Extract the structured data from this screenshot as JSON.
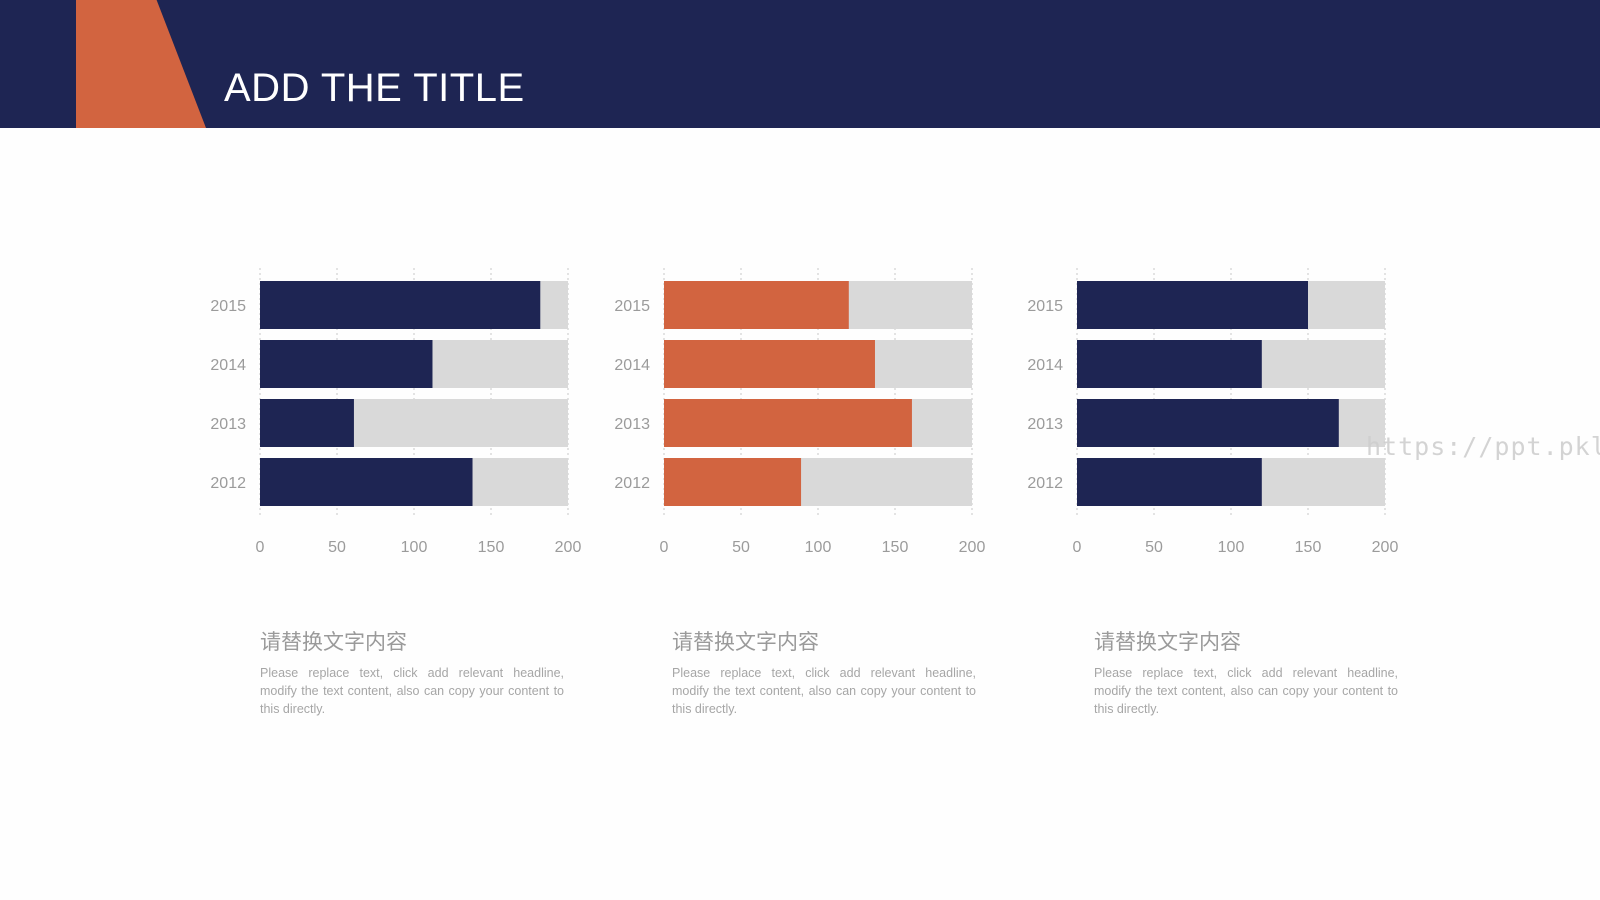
{
  "slide": {
    "title": "ADD THE TITLE",
    "colors": {
      "header_bg": "#1e2553",
      "accent": "#d26440",
      "navy_bar": "#1e2553",
      "orange_bar": "#d26440",
      "track": "#d9d9d9",
      "label": "#9b9b9b"
    }
  },
  "watermark": "https://ppt.pkll.de",
  "chart_data": [
    {
      "type": "bar",
      "orientation": "horizontal",
      "categories": [
        "2015",
        "2014",
        "2013",
        "2012"
      ],
      "values": [
        182,
        112,
        61,
        138
      ],
      "max_track": 200,
      "xlim": [
        0,
        200
      ],
      "xticks": [
        "0",
        "50",
        "100",
        "150",
        "200"
      ],
      "color": "#1e2553",
      "grid": true
    },
    {
      "type": "bar",
      "orientation": "horizontal",
      "categories": [
        "2015",
        "2014",
        "2013",
        "2012"
      ],
      "values": [
        120,
        137,
        161,
        89
      ],
      "max_track": 200,
      "xlim": [
        0,
        200
      ],
      "xticks": [
        "0",
        "50",
        "100",
        "150",
        "200"
      ],
      "color": "#d26440",
      "grid": true
    },
    {
      "type": "bar",
      "orientation": "horizontal",
      "categories": [
        "2015",
        "2014",
        "2013",
        "2012"
      ],
      "values": [
        150,
        120,
        170,
        120
      ],
      "max_track": 200,
      "xlim": [
        0,
        200
      ],
      "xticks": [
        "0",
        "50",
        "100",
        "150",
        "200"
      ],
      "color": "#1e2553",
      "grid": true
    }
  ],
  "captions": [
    {
      "heading": "请替换文字内容",
      "body": "Please replace text, click add relevant headline, modify the text content, also can copy your content to this directly."
    },
    {
      "heading": "请替换文字内容",
      "body": "Please replace text, click add relevant headline, modify the text content, also can copy your content to this directly."
    },
    {
      "heading": "请替换文字内容",
      "body": "Please replace text, click add relevant headline, modify the text content, also can copy your content to this directly."
    }
  ]
}
